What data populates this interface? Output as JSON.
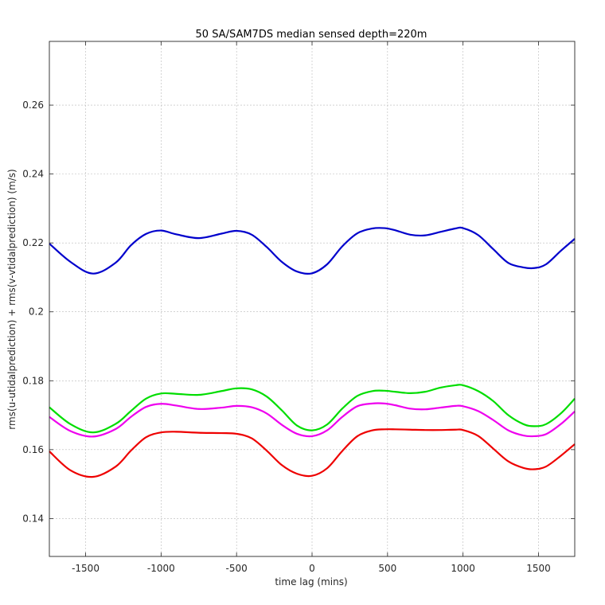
{
  "chart_data": {
    "type": "line",
    "title": "50 SA/SAM7DS median sensed depth=220m",
    "xlabel": "time lag (mins)",
    "ylabel": "rms(u-utidalprediction) + rms(v-vtidalprediction) (m/s)",
    "xlim": [
      -1740,
      1740
    ],
    "ylim": [
      0.129,
      0.2785
    ],
    "xticks": [
      -1500,
      -1000,
      -500,
      0,
      500,
      1000,
      1500
    ],
    "yticks": [
      0.14,
      0.16,
      0.18,
      0.2,
      0.22,
      0.24,
      0.26
    ],
    "grid": true,
    "series": [
      {
        "color": "#0000cc",
        "x": [
          -1740,
          -1600,
          -1450,
          -1300,
          -1200,
          -1100,
          -1000,
          -900,
          -750,
          -600,
          -500,
          -400,
          -300,
          -200,
          -100,
          0,
          100,
          200,
          300,
          400,
          480,
          550,
          650,
          750,
          850,
          950,
          1000,
          1100,
          1200,
          1300,
          1400,
          1470,
          1550,
          1650,
          1740
        ],
        "values": [
          0.2198,
          0.2145,
          0.2111,
          0.2143,
          0.2193,
          0.2226,
          0.2236,
          0.2225,
          0.2214,
          0.2227,
          0.2235,
          0.2224,
          0.2188,
          0.2145,
          0.2117,
          0.2112,
          0.2138,
          0.219,
          0.2228,
          0.2242,
          0.2243,
          0.2237,
          0.2224,
          0.2222,
          0.2232,
          0.2242,
          0.2243,
          0.2223,
          0.2182,
          0.2142,
          0.2129,
          0.2127,
          0.2138,
          0.2178,
          0.2212
        ]
      },
      {
        "color": "#00dd00",
        "x": [
          -1740,
          -1600,
          -1450,
          -1300,
          -1200,
          -1100,
          -1000,
          -900,
          -750,
          -600,
          -500,
          -400,
          -300,
          -200,
          -100,
          0,
          100,
          200,
          300,
          400,
          480,
          550,
          650,
          750,
          850,
          950,
          1000,
          1100,
          1200,
          1300,
          1400,
          1470,
          1550,
          1650,
          1740
        ],
        "values": [
          0.1723,
          0.1674,
          0.165,
          0.1675,
          0.1712,
          0.1748,
          0.1763,
          0.1762,
          0.1759,
          0.177,
          0.1778,
          0.1775,
          0.1754,
          0.1714,
          0.167,
          0.1656,
          0.1673,
          0.1719,
          0.1756,
          0.177,
          0.1771,
          0.1768,
          0.1764,
          0.1768,
          0.178,
          0.1787,
          0.1787,
          0.177,
          0.1741,
          0.17,
          0.1674,
          0.1668,
          0.1674,
          0.1706,
          0.1748
        ]
      },
      {
        "color": "#ee00ee",
        "x": [
          -1740,
          -1600,
          -1450,
          -1300,
          -1200,
          -1100,
          -1000,
          -900,
          -750,
          -600,
          -500,
          -400,
          -300,
          -200,
          -100,
          0,
          100,
          200,
          300,
          400,
          480,
          550,
          650,
          750,
          850,
          950,
          1000,
          1100,
          1200,
          1300,
          1400,
          1470,
          1550,
          1650,
          1740
        ],
        "values": [
          0.1695,
          0.1654,
          0.1638,
          0.166,
          0.1695,
          0.1724,
          0.1733,
          0.1728,
          0.1718,
          0.1722,
          0.1727,
          0.1723,
          0.1705,
          0.1672,
          0.1646,
          0.1639,
          0.1656,
          0.1695,
          0.1726,
          0.1734,
          0.1734,
          0.1729,
          0.1719,
          0.1717,
          0.1722,
          0.1727,
          0.1726,
          0.1712,
          0.1686,
          0.1656,
          0.1641,
          0.1639,
          0.1645,
          0.1675,
          0.1711
        ]
      },
      {
        "color": "#ee0000",
        "x": [
          -1740,
          -1600,
          -1450,
          -1300,
          -1200,
          -1100,
          -1000,
          -900,
          -750,
          -600,
          -500,
          -400,
          -300,
          -200,
          -100,
          0,
          100,
          200,
          300,
          400,
          480,
          550,
          650,
          750,
          850,
          950,
          1000,
          1100,
          1200,
          1300,
          1400,
          1470,
          1550,
          1650,
          1740
        ],
        "values": [
          0.1595,
          0.154,
          0.1521,
          0.1551,
          0.1597,
          0.1636,
          0.165,
          0.1652,
          0.1649,
          0.1648,
          0.1646,
          0.1633,
          0.1597,
          0.1555,
          0.153,
          0.1524,
          0.1546,
          0.1596,
          0.1639,
          0.1656,
          0.1659,
          0.1659,
          0.1658,
          0.1657,
          0.1657,
          0.1658,
          0.1657,
          0.164,
          0.1603,
          0.1566,
          0.1547,
          0.1543,
          0.1551,
          0.1583,
          0.1616
        ]
      }
    ]
  }
}
